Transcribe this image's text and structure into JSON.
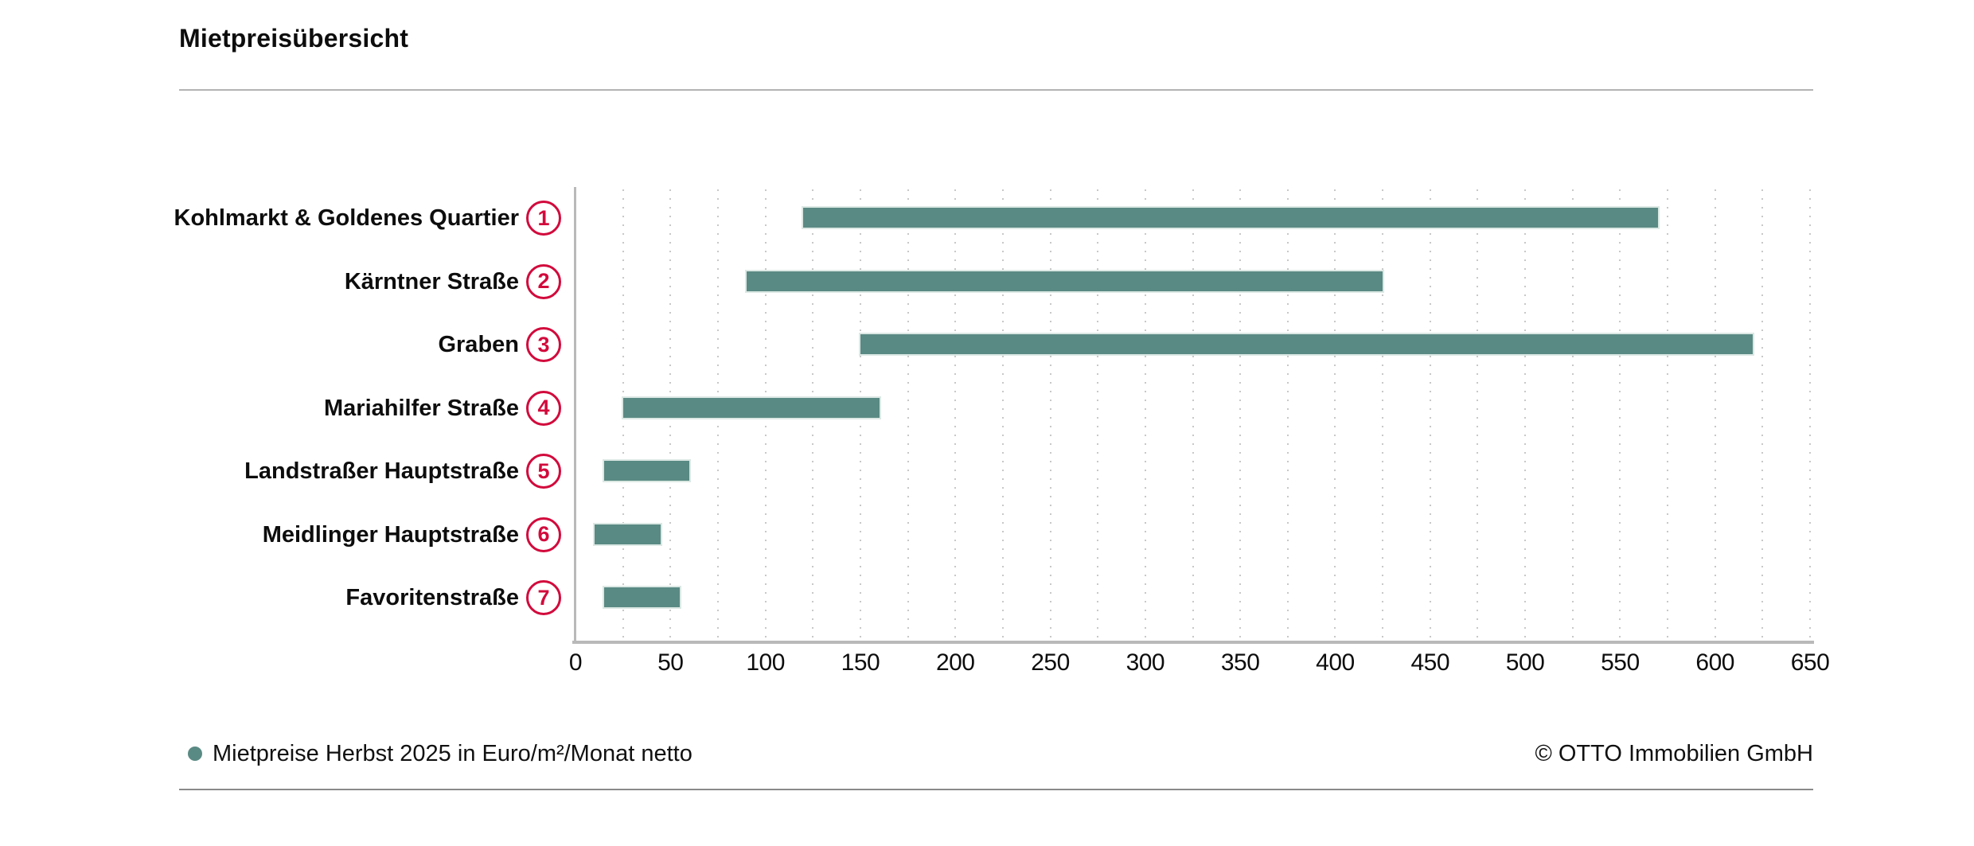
{
  "header": {
    "title": "Mietpreisübersicht"
  },
  "legend": {
    "label": "Mietpreise Herbst 2025 in Euro/m²/Monat netto"
  },
  "footer": {
    "copyright": "© OTTO Immobilien GmbH"
  },
  "colors": {
    "bar": "#5a8a84",
    "bar_outline": "#dce8e4",
    "badge": "#d20a3c",
    "axis": "#b9b9b9",
    "gridline": "#c8c8c8"
  },
  "chart_data": {
    "type": "bar",
    "subtype": "horizontal-range-bar",
    "title": "Mietpreisübersicht",
    "unit": "Euro/m²/Monat netto",
    "categories": [
      {
        "number": "1",
        "label": "Kohlmarkt & Goldenes Quartier"
      },
      {
        "number": "2",
        "label": "Kärntner Straße"
      },
      {
        "number": "3",
        "label": "Graben"
      },
      {
        "number": "4",
        "label": "Mariahilfer Straße"
      },
      {
        "number": "5",
        "label": "Landstraßer Hauptstraße"
      },
      {
        "number": "6",
        "label": "Meidlinger Hauptstraße"
      },
      {
        "number": "7",
        "label": "Favoritenstraße"
      }
    ],
    "series": [
      {
        "name": "Mietpreise Herbst 2025 in Euro/m²/Monat netto",
        "ranges": [
          [
            120,
            570
          ],
          [
            90,
            425
          ],
          [
            150,
            620
          ],
          [
            25,
            160
          ],
          [
            15,
            60
          ],
          [
            10,
            45
          ],
          [
            15,
            55
          ]
        ]
      }
    ],
    "xlim": [
      0,
      650
    ],
    "x_tick_step": 50,
    "x_gridline_step": 25,
    "grid": "dotted-vertical",
    "legend_position": "bottom-left",
    "bar_color": "#5a8a84",
    "badge_color": "#d20a3c"
  }
}
